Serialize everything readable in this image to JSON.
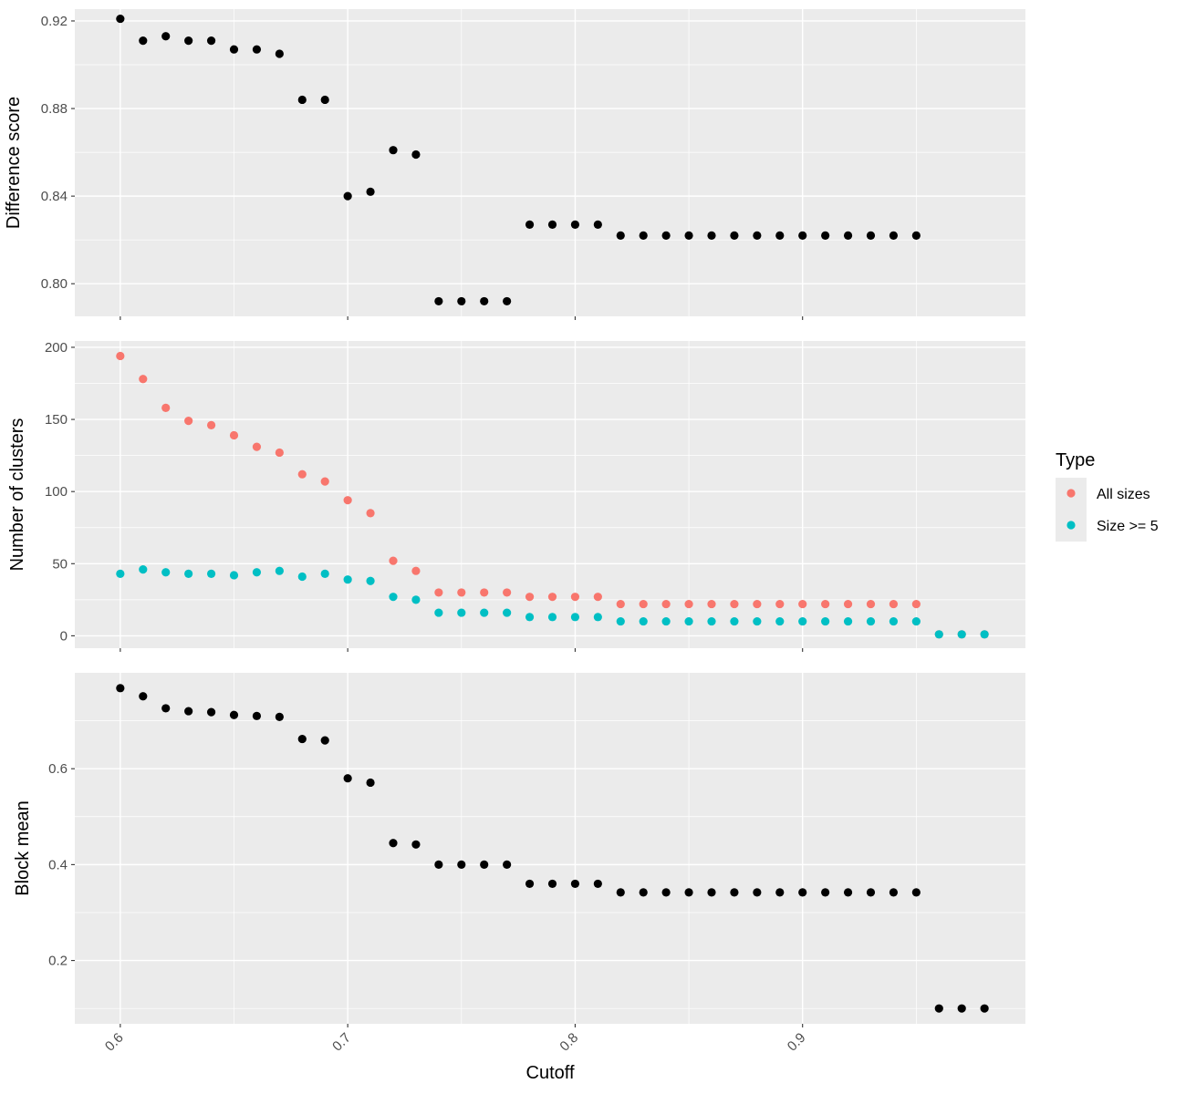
{
  "chart_data": {
    "type": "scatter",
    "xlabel": "Cutoff",
    "xlim": [
      0.58,
      0.998
    ],
    "x_ticks": [
      0.6,
      0.7,
      0.8,
      0.9
    ],
    "x_tick_labels": [
      "0.6",
      "0.7",
      "0.8",
      "0.9"
    ],
    "grid": true,
    "legend": {
      "title": "Type",
      "placement": "right",
      "entries": [
        {
          "label": "All sizes",
          "color": "#F8766D"
        },
        {
          "label": "Size >= 5",
          "color": "#00BFC4"
        }
      ]
    },
    "panels": [
      {
        "ylabel": "Difference score",
        "ylim": [
          0.7851,
          0.9254
        ],
        "y_ticks": [
          0.8,
          0.84,
          0.88,
          0.92
        ],
        "y_tick_labels": [
          "0.80",
          "0.84",
          "0.88",
          "0.92"
        ],
        "series": [
          {
            "color": "#000000",
            "x": [
              0.6,
              0.61,
              0.62,
              0.63,
              0.64,
              0.65,
              0.66,
              0.67,
              0.68,
              0.69,
              0.7,
              0.71,
              0.72,
              0.73,
              0.74,
              0.75,
              0.76,
              0.77,
              0.78,
              0.79,
              0.8,
              0.81,
              0.82,
              0.83,
              0.84,
              0.85,
              0.86,
              0.87,
              0.88,
              0.89,
              0.9,
              0.91,
              0.92,
              0.93,
              0.94,
              0.95
            ],
            "y": [
              0.921,
              0.911,
              0.913,
              0.911,
              0.911,
              0.907,
              0.907,
              0.905,
              0.884,
              0.884,
              0.84,
              0.842,
              0.861,
              0.859,
              0.792,
              0.792,
              0.792,
              0.792,
              0.827,
              0.827,
              0.827,
              0.827,
              0.822,
              0.822,
              0.822,
              0.822,
              0.822,
              0.822,
              0.822,
              0.822,
              0.822,
              0.822,
              0.822,
              0.822,
              0.822,
              0.822
            ]
          }
        ]
      },
      {
        "ylabel": "Number of clusters",
        "ylim": [
          -8.6,
          204.4
        ],
        "y_ticks": [
          0,
          50,
          100,
          150,
          200
        ],
        "y_tick_labels": [
          "0",
          "50",
          "100",
          "150",
          "200"
        ],
        "series": [
          {
            "name": "All sizes",
            "color": "#F8766D",
            "x": [
              0.6,
              0.61,
              0.62,
              0.63,
              0.64,
              0.65,
              0.66,
              0.67,
              0.68,
              0.69,
              0.7,
              0.71,
              0.72,
              0.73,
              0.74,
              0.75,
              0.76,
              0.77,
              0.78,
              0.79,
              0.8,
              0.81,
              0.82,
              0.83,
              0.84,
              0.85,
              0.86,
              0.87,
              0.88,
              0.89,
              0.9,
              0.91,
              0.92,
              0.93,
              0.94,
              0.95,
              0.96,
              0.97,
              0.98
            ],
            "y": [
              194,
              178,
              158,
              149,
              146,
              139,
              131,
              127,
              112,
              107,
              94,
              85,
              52,
              45,
              30,
              30,
              30,
              30,
              27,
              27,
              27,
              27,
              22,
              22,
              22,
              22,
              22,
              22,
              22,
              22,
              22,
              22,
              22,
              22,
              22,
              22,
              1,
              1,
              1
            ]
          },
          {
            "name": "Size >= 5",
            "color": "#00BFC4",
            "x": [
              0.6,
              0.61,
              0.62,
              0.63,
              0.64,
              0.65,
              0.66,
              0.67,
              0.68,
              0.69,
              0.7,
              0.71,
              0.72,
              0.73,
              0.74,
              0.75,
              0.76,
              0.77,
              0.78,
              0.79,
              0.8,
              0.81,
              0.82,
              0.83,
              0.84,
              0.85,
              0.86,
              0.87,
              0.88,
              0.89,
              0.9,
              0.91,
              0.92,
              0.93,
              0.94,
              0.95,
              0.96,
              0.97,
              0.98
            ],
            "y": [
              43,
              46,
              44,
              43,
              43,
              42,
              44,
              45,
              41,
              43,
              39,
              38,
              27,
              25,
              16,
              16,
              16,
              16,
              13,
              13,
              13,
              13,
              10,
              10,
              10,
              10,
              10,
              10,
              10,
              10,
              10,
              10,
              10,
              10,
              10,
              10,
              1,
              1,
              1
            ]
          }
        ]
      },
      {
        "ylabel": "Block mean",
        "ylim": [
          0.068,
          0.8
        ],
        "y_ticks": [
          0.2,
          0.4,
          0.6
        ],
        "y_tick_labels": [
          "0.2",
          "0.4",
          "0.6"
        ],
        "series": [
          {
            "color": "#000000",
            "x": [
              0.6,
              0.61,
              0.62,
              0.63,
              0.64,
              0.65,
              0.66,
              0.67,
              0.68,
              0.69,
              0.7,
              0.71,
              0.72,
              0.73,
              0.74,
              0.75,
              0.76,
              0.77,
              0.78,
              0.79,
              0.8,
              0.81,
              0.82,
              0.83,
              0.84,
              0.85,
              0.86,
              0.87,
              0.88,
              0.89,
              0.9,
              0.91,
              0.92,
              0.93,
              0.94,
              0.95,
              0.96,
              0.97,
              0.98
            ],
            "y": [
              0.768,
              0.751,
              0.726,
              0.72,
              0.718,
              0.712,
              0.71,
              0.708,
              0.662,
              0.659,
              0.58,
              0.571,
              0.445,
              0.442,
              0.4,
              0.4,
              0.4,
              0.4,
              0.36,
              0.36,
              0.36,
              0.36,
              0.342,
              0.342,
              0.342,
              0.342,
              0.342,
              0.342,
              0.342,
              0.342,
              0.342,
              0.342,
              0.342,
              0.342,
              0.342,
              0.342,
              0.1,
              0.1,
              0.1
            ]
          }
        ]
      }
    ]
  }
}
